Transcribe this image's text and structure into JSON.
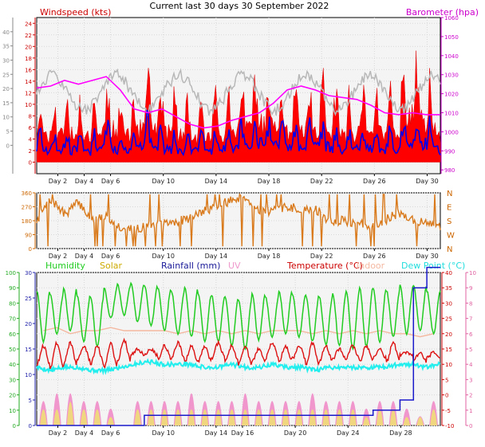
{
  "title": "Current last 30 days 30 September 2022",
  "colors": {
    "wind": "#dd0000",
    "gust": "#ff0000",
    "windavg": "#0000ee",
    "winddir": "#d97a1c",
    "baro": "#ff00ff",
    "humidity": "#22cc22",
    "solar": "#eedd77",
    "rain": "#1a1acc",
    "uv": "#f08cc8",
    "temp": "#dd1111",
    "indoor": "#f4b8a0",
    "dew": "#22eeee",
    "grey": "#b8b8b8"
  },
  "chart_data": [
    {
      "type": "area",
      "panel": "wind-barometer",
      "x_ticks": [
        "Day 2",
        "Day 4",
        "Day 6",
        "Day 10",
        "Day 14",
        "Day 18",
        "Day 22",
        "Day 26",
        "Day 30"
      ],
      "left_axis_far": {
        "ticks": [
          0,
          5,
          10,
          15,
          20,
          25,
          30,
          35,
          40
        ],
        "range": [
          -10,
          45
        ]
      },
      "left_axis": {
        "label": "Windspeed (kts)",
        "ticks": [
          0,
          2,
          4,
          6,
          8,
          10,
          12,
          14,
          16,
          18,
          20,
          22,
          24
        ],
        "range": [
          -2,
          25
        ]
      },
      "right_axis": {
        "label": "Barometer (hpa)",
        "ticks": [
          980,
          990,
          1000,
          1010,
          1020,
          1030,
          1040,
          1050,
          1060
        ],
        "range": [
          978,
          1060
        ]
      },
      "series": [
        {
          "name": "Gust",
          "values": [
            12,
            11,
            13,
            10,
            12,
            14,
            13,
            11,
            18,
            13,
            12,
            11,
            10,
            12,
            14,
            15,
            16,
            14,
            12,
            13,
            15,
            14,
            11,
            12,
            13,
            12,
            14,
            20,
            17,
            12
          ]
        },
        {
          "name": "Average",
          "values": [
            6,
            5,
            6,
            5,
            5,
            7,
            6,
            5,
            8,
            6,
            5,
            5,
            5,
            6,
            7,
            7,
            8,
            7,
            6,
            6,
            7,
            7,
            5,
            6,
            6,
            6,
            7,
            8,
            8,
            5
          ]
        },
        {
          "name": "Barometer",
          "values": [
            1023,
            1024,
            1027,
            1025,
            1027,
            1029,
            1022,
            1012,
            1010,
            1012,
            1008,
            1004,
            1002,
            1003,
            1006,
            1008,
            1010,
            1015,
            1022,
            1024,
            1022,
            1019,
            1018,
            1017,
            1014,
            1010,
            1009,
            1010,
            1009,
            1009
          ]
        }
      ]
    },
    {
      "type": "scatter",
      "panel": "wind-direction",
      "x_ticks": [
        "Day 2",
        "Day 4",
        "Day 6",
        "Day 10",
        "Day 14",
        "Day 18",
        "Day 22",
        "Day 26",
        "Day 30"
      ],
      "left_axis": {
        "ticks": [
          0,
          90,
          180,
          270,
          360
        ],
        "range": [
          0,
          360
        ]
      },
      "right_axis": {
        "ticks": [
          "N",
          "W",
          "S",
          "E",
          "N"
        ]
      },
      "series": [
        {
          "name": "Direction",
          "values": [
            180,
            320,
            220,
            300,
            180,
            210,
            140,
            120,
            150,
            160,
            170,
            200,
            240,
            280,
            310,
            330,
            250,
            240,
            270,
            250,
            260,
            180,
            180,
            160,
            150,
            180,
            230,
            190,
            160,
            140
          ]
        }
      ]
    },
    {
      "type": "line",
      "panel": "temperature-humidity",
      "x_ticks": [
        "Day 2",
        "Day 4",
        "Day 6",
        "Day 10",
        "Day 14",
        "Day 16",
        "Day 20",
        "Day 24",
        "Day 28"
      ],
      "axis_humidity": {
        "ticks": [
          0,
          10,
          20,
          30,
          40,
          50,
          60,
          70,
          80,
          90,
          100
        ],
        "range": [
          0,
          100
        ]
      },
      "axis_rain": {
        "ticks": [
          0,
          5,
          10,
          15,
          20,
          25,
          30
        ],
        "range": [
          0,
          30
        ]
      },
      "axis_temp": {
        "ticks": [
          -10,
          -5,
          0,
          5,
          10,
          15,
          20,
          25,
          30,
          35,
          40
        ],
        "range": [
          -10,
          40
        ]
      },
      "axis_uv": {
        "ticks": [
          0,
          1,
          2,
          3,
          4,
          5,
          6,
          7,
          8,
          9,
          10
        ],
        "range": [
          0,
          10
        ]
      },
      "legend": [
        "Humidity",
        "Solar",
        "Rainfall (mm)",
        "UV",
        "Temperature (°C)",
        "Indoor",
        "Dew Point (°C)"
      ],
      "series": [
        {
          "name": "Humidity",
          "min": [
            55,
            60,
            62,
            55,
            52,
            70,
            72,
            68,
            65,
            62,
            60,
            58,
            55,
            55,
            52,
            50,
            56,
            58,
            60,
            58,
            55,
            53,
            52,
            50,
            52,
            55,
            58,
            60,
            62,
            60
          ],
          "max": [
            88,
            86,
            90,
            85,
            84,
            90,
            92,
            93,
            92,
            90,
            88,
            90,
            86,
            85,
            84,
            82,
            86,
            84,
            88,
            86,
            85,
            84,
            86,
            88,
            90,
            90,
            88,
            92,
            92,
            88
          ]
        },
        {
          "name": "Temperature (°C)",
          "min": [
            10,
            9,
            10,
            11,
            10,
            9,
            11,
            13,
            13,
            12,
            12,
            11,
            11,
            12,
            11,
            10,
            11,
            12,
            11,
            12,
            10,
            11,
            12,
            12,
            11,
            12,
            11,
            13,
            11,
            12
          ],
          "max": [
            16,
            17,
            17,
            16,
            16,
            17,
            18,
            15,
            15,
            16,
            17,
            16,
            16,
            17,
            16,
            16,
            15,
            17,
            16,
            16,
            17,
            16,
            15,
            16,
            16,
            15,
            17,
            14,
            14,
            14
          ]
        },
        {
          "name": "Dew Point (°C)",
          "values": [
            9,
            8,
            9,
            9,
            8,
            8,
            9,
            10,
            11,
            10,
            10,
            10,
            9,
            9,
            10,
            9,
            9,
            10,
            9,
            9,
            8,
            9,
            9,
            9,
            9,
            9,
            10,
            10,
            9,
            10
          ]
        },
        {
          "name": "Indoor",
          "values": [
            21,
            22,
            20,
            21,
            21,
            22,
            21,
            21,
            21,
            21,
            20,
            21,
            20,
            21,
            20,
            21,
            20,
            21,
            21,
            21,
            20,
            21,
            20,
            21,
            20,
            21,
            20,
            20,
            19,
            20
          ]
        },
        {
          "name": "UV",
          "values": [
            3,
            4,
            4,
            3,
            3,
            2,
            0,
            3,
            3,
            3,
            3,
            4,
            3,
            3,
            3,
            4,
            3,
            3,
            3,
            3,
            4,
            3,
            3,
            3,
            2,
            3,
            3,
            2,
            1,
            3
          ]
        },
        {
          "name": "Solar",
          "values": [
            2,
            2,
            3,
            2,
            2,
            1,
            0,
            2,
            2,
            2,
            2,
            2,
            2,
            2,
            2,
            2,
            2,
            2,
            2,
            2,
            2,
            2,
            2,
            2,
            1,
            2,
            2,
            1,
            1,
            2
          ]
        },
        {
          "name": "Rainfall (mm)",
          "values": [
            0,
            0,
            0,
            0,
            0,
            0,
            0,
            0,
            2,
            2,
            2,
            2,
            2,
            2,
            2,
            2,
            2,
            2,
            2,
            2,
            2,
            2,
            2,
            2,
            2,
            3,
            3,
            5,
            27,
            31
          ]
        }
      ]
    }
  ]
}
